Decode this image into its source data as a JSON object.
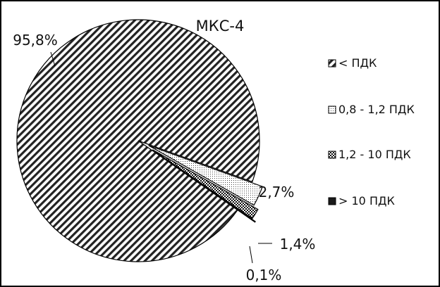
{
  "chart_data": {
    "type": "pie",
    "title": "МКС-4",
    "slices": [
      {
        "name": "< ПДК",
        "value": 95.8,
        "label": "95,8%",
        "pattern": "diagonal-stripes",
        "exploded": false
      },
      {
        "name": "0,8 - 1,2 ПДК",
        "value": 2.7,
        "label": "2,7%",
        "pattern": "fine-dots",
        "exploded": true
      },
      {
        "name": "1,2 - 10 ПДК",
        "value": 1.4,
        "label": "1,4%",
        "pattern": "checker",
        "exploded": true
      },
      {
        "name": "> 10 ПДК",
        "value": 0.1,
        "label": "0,1%",
        "pattern": "solid-dark",
        "exploded": true
      }
    ],
    "legend": {
      "position": "right",
      "entries": [
        "< ПДК",
        "0,8 - 1,2 ПДК",
        "1,2 - 10 ПДК",
        "> 10 ПДК"
      ]
    },
    "colors": {
      "stroke": "#000000",
      "stripe": "#222222",
      "background": "#ffffff"
    }
  }
}
